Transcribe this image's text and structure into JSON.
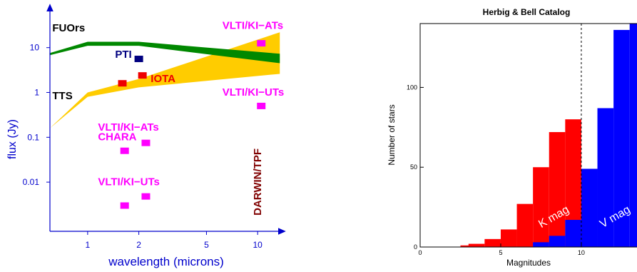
{
  "chart_data": [
    {
      "type": "area",
      "xlabel": "wavelength (microns)",
      "ylabel": "flux (Jy)",
      "x_scale": "log",
      "y_scale": "log",
      "xlim": [
        0.6,
        14
      ],
      "ylim": [
        0.0008,
        80
      ],
      "x_ticks": [
        {
          "value": 1,
          "label": "1"
        },
        {
          "value": 2,
          "label": "2"
        },
        {
          "value": 5,
          "label": "5"
        },
        {
          "value": 10,
          "label": "10"
        }
      ],
      "y_ticks": [
        {
          "value": 0.01,
          "label": "0.01"
        },
        {
          "value": 0.1,
          "label": "0.1"
        },
        {
          "value": 1,
          "label": "1"
        },
        {
          "value": 10,
          "label": "10"
        }
      ],
      "bands": [
        {
          "name": "FUOrs",
          "color": "#008800",
          "upper": [
            [
              0.6,
              7.6
            ],
            [
              1.0,
              13.5
            ],
            [
              2.0,
              13.5
            ],
            [
              13.5,
              7.3
            ]
          ],
          "lower": [
            [
              0.6,
              6.8
            ],
            [
              1.0,
              11.0
            ],
            [
              2.0,
              11.0
            ],
            [
              13.5,
              4.5
            ]
          ]
        },
        {
          "name": "TTS",
          "color": "#ffcc00",
          "upper": [
            [
              0.6,
              0.16
            ],
            [
              1.0,
              1.0
            ],
            [
              2.0,
              2.0
            ],
            [
              13.5,
              22.0
            ]
          ],
          "lower": [
            [
              0.6,
              0.16
            ],
            [
              1.0,
              0.8
            ],
            [
              2.0,
              1.3
            ],
            [
              13.5,
              2.6
            ]
          ]
        }
      ],
      "markers": [
        {
          "x": 2.0,
          "y": 5.6,
          "color": "#000080"
        },
        {
          "x": 1.6,
          "y": 1.6,
          "color": "#ee0000"
        },
        {
          "x": 2.1,
          "y": 2.4,
          "color": "#ee0000"
        },
        {
          "x": 10.5,
          "y": 12.5,
          "color": "#ff00ff"
        },
        {
          "x": 10.5,
          "y": 0.5,
          "color": "#ff00ff"
        },
        {
          "x": 1.65,
          "y": 0.05,
          "color": "#ff00ff"
        },
        {
          "x": 2.2,
          "y": 0.075,
          "color": "#ff00ff"
        },
        {
          "x": 1.65,
          "y": 0.003,
          "color": "#ff00ff"
        },
        {
          "x": 2.2,
          "y": 0.0048,
          "color": "#ff00ff"
        }
      ],
      "annotations": [
        {
          "text": "FUOrs",
          "x": 0.62,
          "y": 23,
          "color": "#000000"
        },
        {
          "text": "PTI",
          "x": 1.45,
          "y": 5.9,
          "color": "#000080"
        },
        {
          "text": "IOTA",
          "x": 2.35,
          "y": 1.7,
          "color": "#ee0000"
        },
        {
          "text": "TTS",
          "x": 0.62,
          "y": 0.7,
          "color": "#000000"
        },
        {
          "text": "VLTI/KI−ATs",
          "x": 6.2,
          "y": 26,
          "color": "#ff00ff"
        },
        {
          "text": "VLTI/KI−UTs",
          "x": 6.2,
          "y": 0.85,
          "color": "#ff00ff"
        },
        {
          "text": "VLTI/KI−ATs",
          "x": 1.15,
          "y": 0.14,
          "color": "#ff00ff"
        },
        {
          "text": "CHARA",
          "x": 1.15,
          "y": 0.085,
          "color": "#ff00ff"
        },
        {
          "text": "VLTI/KI−UTs",
          "x": 1.15,
          "y": 0.0085,
          "color": "#ff00ff"
        },
        {
          "text": "DARWIN/TPF",
          "x": 10.5,
          "y": 0.0018,
          "color": "#800000",
          "rotate": -90
        }
      ]
    },
    {
      "type": "bar",
      "title": "Herbig & Bell Catalog",
      "xlabel": "Magnitudes",
      "ylabel": "Number of stars",
      "xlim": [
        0,
        13.5
      ],
      "ylim": [
        0,
        140
      ],
      "x_ticks": [
        0,
        5,
        10
      ],
      "y_ticks": [
        0,
        50,
        100
      ],
      "cutoff_line_x": 10,
      "bin_width": 1,
      "series": [
        {
          "name": "K mag",
          "color": "#ff0000",
          "bins": [
            {
              "x0": 2.5,
              "value": 1
            },
            {
              "x0": 3,
              "value": 2
            },
            {
              "x0": 4,
              "value": 5
            },
            {
              "x0": 5,
              "value": 11
            },
            {
              "x0": 6,
              "value": 27
            },
            {
              "x0": 7,
              "value": 50
            },
            {
              "x0": 8,
              "value": 72
            },
            {
              "x0": 9,
              "value": 80
            }
          ]
        },
        {
          "name": "V mag",
          "color": "#0000ff",
          "bins": [
            {
              "x0": 7,
              "value": 3
            },
            {
              "x0": 8,
              "value": 7
            },
            {
              "x0": 9,
              "value": 17
            },
            {
              "x0": 10,
              "value": 49
            },
            {
              "x0": 11,
              "value": 87
            },
            {
              "x0": 12,
              "value": 136
            },
            {
              "x0": 13,
              "value": 140
            }
          ]
        }
      ],
      "series_labels": [
        {
          "text": "K mag",
          "x": 8.4,
          "y": 17,
          "rotate": -30,
          "color": "#ffffff"
        },
        {
          "text": "V mag",
          "x": 12.2,
          "y": 17,
          "rotate": -30,
          "color": "#ffffff"
        }
      ]
    }
  ]
}
